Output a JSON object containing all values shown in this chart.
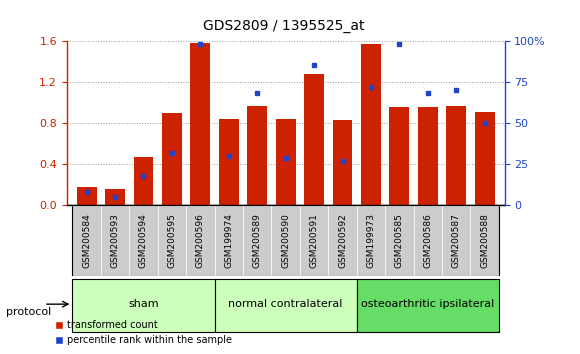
{
  "title": "GDS2809 / 1395525_at",
  "samples": [
    "GSM200584",
    "GSM200593",
    "GSM200594",
    "GSM200595",
    "GSM200596",
    "GSM199974",
    "GSM200589",
    "GSM200590",
    "GSM200591",
    "GSM200592",
    "GSM199973",
    "GSM200585",
    "GSM200586",
    "GSM200587",
    "GSM200588"
  ],
  "red_values": [
    0.18,
    0.16,
    0.47,
    0.9,
    1.58,
    0.84,
    0.97,
    0.84,
    1.28,
    0.83,
    1.57,
    0.96,
    0.96,
    0.97,
    0.91
  ],
  "blue_values_pct": [
    8,
    5,
    18,
    32,
    98,
    30,
    68,
    29,
    85,
    27,
    72,
    98,
    68,
    70,
    50
  ],
  "group_labels": [
    "sham",
    "normal contralateral",
    "osteoarthritic ipsilateral"
  ],
  "group_starts": [
    0,
    5,
    10
  ],
  "group_ends": [
    5,
    10,
    15
  ],
  "group_colors": [
    "#ccffbb",
    "#ccffbb",
    "#66dd66"
  ],
  "ylim_left": [
    0,
    1.6
  ],
  "ylim_right": [
    0,
    100
  ],
  "yticks_left": [
    0.0,
    0.4,
    0.8,
    1.2,
    1.6
  ],
  "yticks_right": [
    0,
    25,
    50,
    75,
    100
  ],
  "ytick_labels_right": [
    "0",
    "25",
    "50",
    "75",
    "100%"
  ],
  "bar_width": 0.7,
  "red_color": "#cc2200",
  "blue_color": "#2244cc",
  "grid_color": "#999999",
  "bg_color": "#ffffff",
  "tick_label_bg": "#cccccc",
  "border_color": "#000000",
  "protocol_label": "protocol",
  "legend1": "transformed count",
  "legend2": "percentile rank within the sample",
  "title_fontsize": 10,
  "tick_fontsize": 6.5,
  "axis_label_fontsize": 8,
  "group_label_fontsize": 8,
  "legend_fontsize": 7
}
